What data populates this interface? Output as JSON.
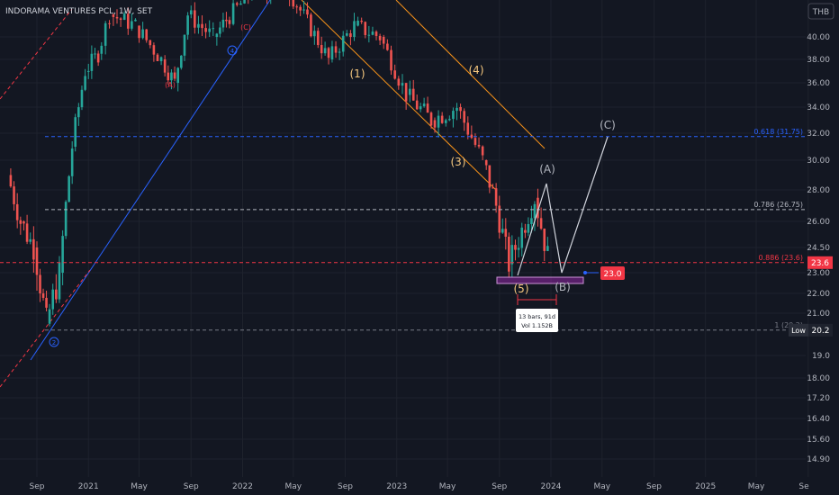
{
  "header": {
    "title": "INDORAMA VENTURES PCL, 1W, SET",
    "currency": "THB"
  },
  "chart_data": {
    "type": "candlestick",
    "ylim": [
      14.5,
      44
    ],
    "y_ticks": [
      "40.00",
      "38.00",
      "36.00",
      "34.00",
      "32.00",
      "30.00",
      "28.00",
      "26.00",
      "24.50",
      "23.00",
      "22.00",
      "21.00",
      "19.0",
      "18.00",
      "17.20",
      "16.40",
      "15.60",
      "14.90"
    ],
    "y_tick_values": [
      40,
      38,
      36,
      34,
      32,
      30,
      28,
      26,
      24.5,
      23,
      22,
      21,
      19,
      18,
      17.2,
      16.4,
      15.6,
      14.9
    ],
    "x_ticks": [
      "Sep",
      "2021",
      "May",
      "Sep",
      "2022",
      "May",
      "Sep",
      "2023",
      "May",
      "Sep",
      "2024",
      "May",
      "Sep",
      "2025",
      "May",
      "Se"
    ],
    "x_tick_values": [
      "2020-09",
      "2021-01",
      "2021-05",
      "2021-09",
      "2022-01",
      "2022-05",
      "2022-09",
      "2023-01",
      "2023-05",
      "2023-09",
      "2024-01",
      "2024-05",
      "2024-09",
      "2025-01",
      "2025-05",
      "2025-09"
    ],
    "series_close_approx": [
      {
        "date": "2020-07",
        "value": 29
      },
      {
        "date": "2020-08",
        "value": 26
      },
      {
        "date": "2020-09",
        "value": 24.5
      },
      {
        "date": "2020-10",
        "value": 20.5
      },
      {
        "date": "2020-11",
        "value": 23
      },
      {
        "date": "2020-12",
        "value": 31
      },
      {
        "date": "2021-01",
        "value": 37
      },
      {
        "date": "2021-02",
        "value": 38.5
      },
      {
        "date": "2021-03",
        "value": 42
      },
      {
        "date": "2021-05",
        "value": 41
      },
      {
        "date": "2021-07",
        "value": 38
      },
      {
        "date": "2021-08",
        "value": 36
      },
      {
        "date": "2021-09",
        "value": 42
      },
      {
        "date": "2021-11",
        "value": 40
      },
      {
        "date": "2021-12",
        "value": 41.5
      },
      {
        "date": "2022-02",
        "value": 44
      },
      {
        "date": "2022-05",
        "value": 44
      },
      {
        "date": "2022-08",
        "value": 38
      },
      {
        "date": "2022-10",
        "value": 41
      },
      {
        "date": "2022-12",
        "value": 40
      },
      {
        "date": "2023-02",
        "value": 35
      },
      {
        "date": "2023-04",
        "value": 33
      },
      {
        "date": "2023-06",
        "value": 34
      },
      {
        "date": "2023-08",
        "value": 30
      },
      {
        "date": "2023-09",
        "value": 27
      },
      {
        "date": "2023-10",
        "value": 23.5
      },
      {
        "date": "2023-11",
        "value": 25.5
      },
      {
        "date": "2023-12",
        "value": 27.5
      },
      {
        "date": "2024-01",
        "value": 24
      }
    ],
    "levels": [
      {
        "label": "0.618 (31.75)",
        "value": 31.75,
        "color": "#2962ff"
      },
      {
        "label": "0.786 (26.75)",
        "value": 26.75,
        "color": "#b2b5be"
      },
      {
        "label": "0.886 (23.6)",
        "value": 23.6,
        "color": "#f23645"
      },
      {
        "label": "1 (20.2)",
        "value": 20.2,
        "color": "#787b86"
      }
    ],
    "wave_labels": [
      "(1)",
      "(3)",
      "(4)",
      "(5)",
      "(A)",
      "(B)",
      "(C)",
      "(A)",
      "(C)"
    ],
    "circle_labels": [
      "2",
      "4"
    ],
    "price_badges": [
      {
        "label": "23.6",
        "value": 23.6,
        "color": "#f23645"
      },
      {
        "label": "Low",
        "value": "20.2",
        "color": "#2a2e39"
      }
    ],
    "target_badge": {
      "label": "23.0",
      "color": "#f23645"
    },
    "measure_box": {
      "line1": "13 bars, 91d",
      "line2": "Vol 1.152B"
    }
  }
}
